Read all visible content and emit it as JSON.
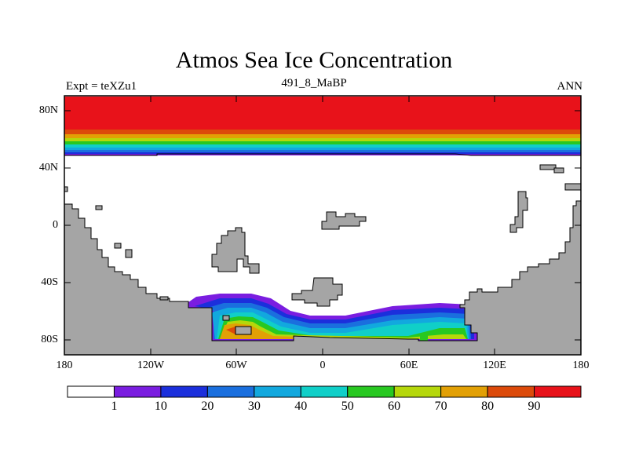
{
  "title": "Atmos Sea Ice Concentration",
  "subtitle_left": "Expt = teXZu1",
  "subtitle_center": "491_8_MaBP",
  "subtitle_right": "ANN",
  "lat_labels": [
    "80N",
    "40N",
    "0",
    "40S",
    "80S"
  ],
  "lon_labels": [
    "180",
    "120W",
    "60W",
    "0",
    "60E",
    "120E",
    "180"
  ],
  "colorbar": {
    "labels": [
      "1",
      "10",
      "20",
      "30",
      "40",
      "50",
      "60",
      "70",
      "80",
      "90"
    ],
    "colors": [
      "#ffffff",
      "#7a1de0",
      "#1b2fdc",
      "#1a6fde",
      "#12a8de",
      "#10cfc8",
      "#28c821",
      "#b5d70b",
      "#e2a005",
      "#dc4a0a",
      "#e8121a"
    ]
  },
  "colors": {
    "land": "#a5a5a5",
    "ocean": "#ffffff"
  }
}
